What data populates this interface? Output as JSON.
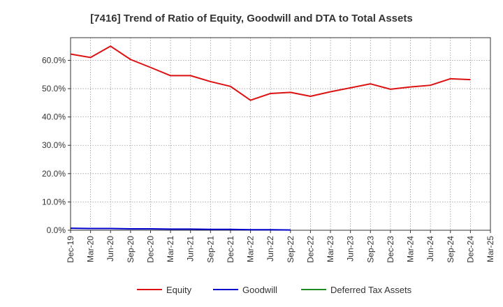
{
  "chart_data": {
    "type": "line",
    "title": "[7416]  Trend of Ratio of Equity, Goodwill and DTA to Total Assets",
    "xlabel": "",
    "ylabel": "",
    "ylim": [
      0,
      68
    ],
    "y_ticks": [
      {
        "value": 0,
        "label": "0.0%"
      },
      {
        "value": 10,
        "label": "10.0%"
      },
      {
        "value": 20,
        "label": "20.0%"
      },
      {
        "value": 30,
        "label": "30.0%"
      },
      {
        "value": 40,
        "label": "40.0%"
      },
      {
        "value": 50,
        "label": "50.0%"
      },
      {
        "value": 60,
        "label": "60.0%"
      }
    ],
    "categories": [
      "Dec-19",
      "Mar-20",
      "Jun-20",
      "Sep-20",
      "Dec-20",
      "Mar-21",
      "Jun-21",
      "Sep-21",
      "Dec-21",
      "Mar-22",
      "Jun-22",
      "Sep-22",
      "Dec-22",
      "Mar-23",
      "Jun-23",
      "Sep-23",
      "Dec-23",
      "Mar-24",
      "Jun-24",
      "Sep-24",
      "Dec-24",
      "Mar-25"
    ],
    "grid": true,
    "legend_position": "bottom",
    "series": [
      {
        "name": "Equity",
        "color": "#dd1111",
        "values": [
          62.2,
          61.0,
          65.0,
          60.3,
          57.5,
          54.6,
          54.6,
          52.5,
          50.8,
          45.9,
          48.3,
          48.7,
          47.3,
          48.9,
          50.3,
          51.7,
          49.8,
          50.6,
          51.2,
          53.5,
          53.2,
          null
        ]
      },
      {
        "name": "Goodwill",
        "color": "#0000cc",
        "values": [
          0.7,
          0.6,
          0.6,
          0.5,
          0.5,
          0.4,
          0.4,
          0.3,
          0.3,
          0.2,
          0.2,
          0.1,
          null,
          null,
          null,
          null,
          null,
          null,
          null,
          null,
          null,
          null
        ]
      },
      {
        "name": "Deferred Tax Assets",
        "color": "#228b22",
        "values": [
          null,
          null,
          null,
          null,
          null,
          null,
          null,
          null,
          null,
          null,
          null,
          null,
          null,
          null,
          null,
          null,
          null,
          null,
          null,
          null,
          null,
          null
        ]
      }
    ]
  }
}
